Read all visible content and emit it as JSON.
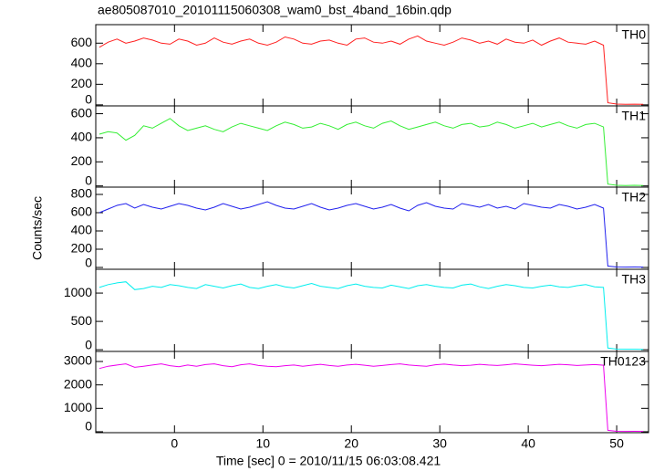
{
  "title": "ae805087010_20101115060308_wam0_bst_4band_16bin.qdp",
  "xlabel": "Time [sec] 0 = 2010/11/15 06:03:08.421",
  "ylabel": "Counts/sec",
  "chart_data": [
    {
      "type": "line",
      "xlim": [
        -8.9,
        53.6
      ],
      "ylim": [
        -10,
        780
      ],
      "xticks": [
        0,
        10,
        20,
        30,
        40,
        50
      ],
      "yticks": [
        0,
        200,
        400,
        600
      ],
      "x": [
        -8.5,
        -7.5,
        -6.5,
        -5.5,
        -4.5,
        -3.5,
        -2.5,
        -1.5,
        -0.5,
        0.5,
        1.5,
        2.5,
        3.5,
        4.5,
        5.5,
        6.5,
        7.5,
        8.5,
        9.5,
        10.5,
        11.5,
        12.5,
        13.5,
        14.5,
        15.5,
        16.5,
        17.5,
        18.5,
        19.5,
        20.5,
        21.5,
        22.5,
        23.5,
        24.5,
        25.5,
        26.5,
        27.5,
        28.5,
        29.5,
        30.5,
        31.5,
        32.5,
        33.5,
        34.5,
        35.5,
        36.5,
        37.5,
        38.5,
        39.5,
        40.5,
        41.5,
        42.5,
        43.5,
        44.5,
        45.5,
        46.5,
        47.5,
        48.5,
        49,
        50,
        51,
        52,
        53
      ],
      "series": [
        {
          "name": "TH0",
          "color": "#ff2020",
          "values": [
            560,
            610,
            640,
            600,
            620,
            650,
            630,
            600,
            590,
            640,
            620,
            580,
            600,
            650,
            610,
            590,
            620,
            640,
            600,
            580,
            610,
            660,
            640,
            600,
            590,
            620,
            630,
            600,
            580,
            640,
            650,
            610,
            600,
            620,
            590,
            640,
            670,
            620,
            600,
            580,
            610,
            650,
            630,
            600,
            620,
            590,
            640,
            610,
            600,
            630,
            580,
            620,
            650,
            610,
            600,
            590,
            620,
            580,
            20,
            8,
            6,
            7,
            5
          ]
        }
      ]
    },
    {
      "type": "line",
      "xlim": [
        -8.9,
        53.6
      ],
      "ylim": [
        -10,
        665
      ],
      "xticks": [
        0,
        10,
        20,
        30,
        40,
        50
      ],
      "yticks": [
        0,
        200,
        400,
        600
      ],
      "x": [
        -8.5,
        -7.5,
        -6.5,
        -5.5,
        -4.5,
        -3.5,
        -2.5,
        -1.5,
        -0.5,
        0.5,
        1.5,
        2.5,
        3.5,
        4.5,
        5.5,
        6.5,
        7.5,
        8.5,
        9.5,
        10.5,
        11.5,
        12.5,
        13.5,
        14.5,
        15.5,
        16.5,
        17.5,
        18.5,
        19.5,
        20.5,
        21.5,
        22.5,
        23.5,
        24.5,
        25.5,
        26.5,
        27.5,
        28.5,
        29.5,
        30.5,
        31.5,
        32.5,
        33.5,
        34.5,
        35.5,
        36.5,
        37.5,
        38.5,
        39.5,
        40.5,
        41.5,
        42.5,
        43.5,
        44.5,
        45.5,
        46.5,
        47.5,
        48.5,
        49,
        50,
        51,
        52,
        53
      ],
      "series": [
        {
          "name": "TH1",
          "color": "#33ee33",
          "values": [
            430,
            450,
            440,
            380,
            420,
            500,
            480,
            520,
            560,
            500,
            460,
            480,
            500,
            470,
            450,
            490,
            520,
            500,
            480,
            460,
            500,
            530,
            510,
            480,
            490,
            520,
            500,
            470,
            510,
            530,
            500,
            480,
            520,
            540,
            500,
            470,
            490,
            510,
            530,
            500,
            480,
            510,
            520,
            490,
            500,
            530,
            510,
            480,
            500,
            520,
            490,
            510,
            530,
            500,
            480,
            510,
            520,
            490,
            15,
            5,
            4,
            5,
            4
          ]
        }
      ]
    },
    {
      "type": "line",
      "xlim": [
        -8.9,
        53.6
      ],
      "ylim": [
        -20,
        880
      ],
      "xticks": [
        0,
        10,
        20,
        30,
        40,
        50
      ],
      "yticks": [
        0,
        200,
        400,
        600,
        800
      ],
      "x": [
        -8.5,
        -7.5,
        -6.5,
        -5.5,
        -4.5,
        -3.5,
        -2.5,
        -1.5,
        -0.5,
        0.5,
        1.5,
        2.5,
        3.5,
        4.5,
        5.5,
        6.5,
        7.5,
        8.5,
        9.5,
        10.5,
        11.5,
        12.5,
        13.5,
        14.5,
        15.5,
        16.5,
        17.5,
        18.5,
        19.5,
        20.5,
        21.5,
        22.5,
        23.5,
        24.5,
        25.5,
        26.5,
        27.5,
        28.5,
        29.5,
        30.5,
        31.5,
        32.5,
        33.5,
        34.5,
        35.5,
        36.5,
        37.5,
        38.5,
        39.5,
        40.5,
        41.5,
        42.5,
        43.5,
        44.5,
        45.5,
        46.5,
        47.5,
        48.5,
        49,
        50,
        51,
        52,
        53
      ],
      "series": [
        {
          "name": "TH2",
          "color": "#2020ee",
          "values": [
            600,
            640,
            680,
            700,
            650,
            690,
            660,
            640,
            670,
            700,
            680,
            650,
            630,
            660,
            700,
            670,
            640,
            660,
            690,
            720,
            680,
            650,
            640,
            670,
            700,
            660,
            630,
            650,
            680,
            700,
            670,
            640,
            660,
            690,
            650,
            620,
            680,
            710,
            670,
            650,
            640,
            700,
            680,
            660,
            690,
            650,
            670,
            640,
            700,
            680,
            660,
            650,
            690,
            670,
            640,
            660,
            690,
            650,
            15,
            5,
            4,
            5,
            4
          ]
        }
      ]
    },
    {
      "type": "line",
      "xlim": [
        -8.9,
        53.6
      ],
      "ylim": [
        -30,
        1420
      ],
      "xticks": [
        0,
        10,
        20,
        30,
        40,
        50
      ],
      "yticks": [
        0,
        500,
        1000
      ],
      "x": [
        -8.5,
        -7.5,
        -6.5,
        -5.5,
        -4.5,
        -3.5,
        -2.5,
        -1.5,
        -0.5,
        0.5,
        1.5,
        2.5,
        3.5,
        4.5,
        5.5,
        6.5,
        7.5,
        8.5,
        9.5,
        10.5,
        11.5,
        12.5,
        13.5,
        14.5,
        15.5,
        16.5,
        17.5,
        18.5,
        19.5,
        20.5,
        21.5,
        22.5,
        23.5,
        24.5,
        25.5,
        26.5,
        27.5,
        28.5,
        29.5,
        30.5,
        31.5,
        32.5,
        33.5,
        34.5,
        35.5,
        36.5,
        37.5,
        38.5,
        39.5,
        40.5,
        41.5,
        42.5,
        43.5,
        44.5,
        45.5,
        46.5,
        47.5,
        48.5,
        49,
        50,
        51,
        52,
        53
      ],
      "series": [
        {
          "name": "TH3",
          "color": "#00eeee",
          "values": [
            1100,
            1150,
            1180,
            1200,
            1060,
            1080,
            1120,
            1100,
            1150,
            1130,
            1100,
            1080,
            1150,
            1120,
            1090,
            1130,
            1160,
            1100,
            1080,
            1120,
            1150,
            1110,
            1090,
            1130,
            1170,
            1120,
            1100,
            1080,
            1130,
            1160,
            1120,
            1100,
            1090,
            1140,
            1110,
            1080,
            1130,
            1150,
            1120,
            1100,
            1090,
            1140,
            1160,
            1110,
            1080,
            1120,
            1150,
            1130,
            1100,
            1090,
            1120,
            1140,
            1110,
            1100,
            1130,
            1150,
            1110,
            1100,
            30,
            10,
            8,
            9,
            7
          ]
        }
      ]
    },
    {
      "type": "line",
      "xlim": [
        -8.9,
        53.6
      ],
      "ylim": [
        -40,
        3430
      ],
      "xticks": [
        0,
        10,
        20,
        30,
        40,
        50
      ],
      "yticks": [
        0,
        1000,
        2000,
        3000
      ],
      "x": [
        -8.5,
        -7.5,
        -6.5,
        -5.5,
        -4.5,
        -3.5,
        -2.5,
        -1.5,
        -0.5,
        0.5,
        1.5,
        2.5,
        3.5,
        4.5,
        5.5,
        6.5,
        7.5,
        8.5,
        9.5,
        10.5,
        11.5,
        12.5,
        13.5,
        14.5,
        15.5,
        16.5,
        17.5,
        18.5,
        19.5,
        20.5,
        21.5,
        22.5,
        23.5,
        24.5,
        25.5,
        26.5,
        27.5,
        28.5,
        29.5,
        30.5,
        31.5,
        32.5,
        33.5,
        34.5,
        35.5,
        36.5,
        37.5,
        38.5,
        39.5,
        40.5,
        41.5,
        42.5,
        43.5,
        44.5,
        45.5,
        46.5,
        47.5,
        48.5,
        49,
        50,
        51,
        52,
        53
      ],
      "series": [
        {
          "name": "TH0123",
          "color": "#ee00ee",
          "values": [
            2700,
            2800,
            2850,
            2900,
            2750,
            2800,
            2850,
            2900,
            2820,
            2780,
            2850,
            2800,
            2870,
            2900,
            2820,
            2780,
            2860,
            2900,
            2830,
            2800,
            2780,
            2820,
            2850,
            2800,
            2840,
            2880,
            2830,
            2800,
            2850,
            2880,
            2840,
            2800,
            2830,
            2870,
            2900,
            2850,
            2820,
            2800,
            2860,
            2890,
            2850,
            2820,
            2840,
            2880,
            2850,
            2830,
            2860,
            2900,
            2870,
            2840,
            2820,
            2850,
            2880,
            2860,
            2830,
            2850,
            2870,
            2840,
            60,
            20,
            15,
            18,
            14
          ]
        }
      ]
    }
  ]
}
